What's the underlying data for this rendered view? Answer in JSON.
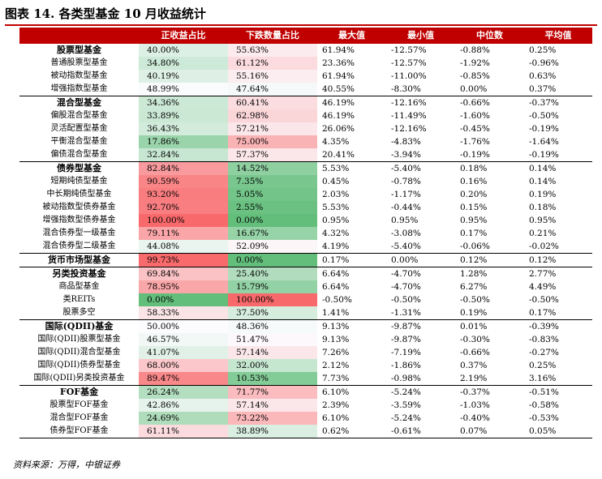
{
  "title": "图表 14. 各类型基金 10 月收益统计",
  "source": "资料来源：万得，中银证券",
  "columns": [
    "",
    "正收益占比",
    "下跌数量占比",
    "最大值",
    "最小值",
    "中位数",
    "平均值"
  ],
  "rows": [
    {
      "name": "股票型基金",
      "category": true,
      "pos": "40.00%",
      "pos_v": 40.0,
      "down": "55.63%",
      "down_v": 55.63,
      "max": "61.94%",
      "min": "-12.57%",
      "median": "-0.88%",
      "mean": "0.25%"
    },
    {
      "name": "普通股票型基金",
      "pos": "34.80%",
      "pos_v": 34.8,
      "down": "61.12%",
      "down_v": 61.12,
      "max": "23.36%",
      "min": "-12.57%",
      "median": "-1.92%",
      "mean": "-0.96%"
    },
    {
      "name": "被动指数型基金",
      "pos": "40.19%",
      "pos_v": 40.19,
      "down": "55.16%",
      "down_v": 55.16,
      "max": "61.94%",
      "min": "-11.00%",
      "median": "-0.85%",
      "mean": "0.63%"
    },
    {
      "name": "增强指数型基金",
      "pos": "48.99%",
      "pos_v": 48.99,
      "down": "47.64%",
      "down_v": 47.64,
      "max": "40.55%",
      "min": "-8.30%",
      "median": "0.00%",
      "mean": "0.37%"
    },
    {
      "name": "混合型基金",
      "category": true,
      "pos": "34.36%",
      "pos_v": 34.36,
      "down": "60.41%",
      "down_v": 60.41,
      "max": "46.19%",
      "min": "-12.16%",
      "median": "-0.66%",
      "mean": "-0.37%"
    },
    {
      "name": "偏股混合型基金",
      "pos": "33.89%",
      "pos_v": 33.89,
      "down": "62.98%",
      "down_v": 62.98,
      "max": "46.19%",
      "min": "-11.49%",
      "median": "-1.60%",
      "mean": "-0.50%"
    },
    {
      "name": "灵活配置型基金",
      "pos": "36.43%",
      "pos_v": 36.43,
      "down": "57.21%",
      "down_v": 57.21,
      "max": "26.06%",
      "min": "-12.16%",
      "median": "-0.45%",
      "mean": "-0.19%"
    },
    {
      "name": "平衡混合型基金",
      "pos": "17.86%",
      "pos_v": 17.86,
      "down": "75.00%",
      "down_v": 75.0,
      "max": "4.35%",
      "min": "-4.83%",
      "median": "-1.76%",
      "mean": "-1.64%"
    },
    {
      "name": "偏债混合型基金",
      "pos": "32.84%",
      "pos_v": 32.84,
      "down": "57.37%",
      "down_v": 57.37,
      "max": "20.41%",
      "min": "-3.94%",
      "median": "-0.19%",
      "mean": "-0.19%"
    },
    {
      "name": "债券型基金",
      "category": true,
      "pos": "82.84%",
      "pos_v": 82.84,
      "down": "14.52%",
      "down_v": 14.52,
      "max": "5.53%",
      "min": "-5.40%",
      "median": "0.18%",
      "mean": "0.14%"
    },
    {
      "name": "短期纯债型基金",
      "pos": "90.59%",
      "pos_v": 90.59,
      "down": "7.35%",
      "down_v": 7.35,
      "max": "0.45%",
      "min": "-0.78%",
      "median": "0.16%",
      "mean": "0.14%"
    },
    {
      "name": "中长期纯债型基金",
      "pos": "93.20%",
      "pos_v": 93.2,
      "down": "5.05%",
      "down_v": 5.05,
      "max": "2.03%",
      "min": "-1.17%",
      "median": "0.20%",
      "mean": "0.19%"
    },
    {
      "name": "被动指数型债券基金",
      "pos": "92.70%",
      "pos_v": 92.7,
      "down": "2.55%",
      "down_v": 2.55,
      "max": "5.53%",
      "min": "-0.44%",
      "median": "0.15%",
      "mean": "0.18%"
    },
    {
      "name": "增强指数型债券基金",
      "pos": "100.00%",
      "pos_v": 100.0,
      "down": "0.00%",
      "down_v": 0.0,
      "max": "0.95%",
      "min": "0.95%",
      "median": "0.95%",
      "mean": "0.95%"
    },
    {
      "name": "混合债券型一级基金",
      "pos": "79.11%",
      "pos_v": 79.11,
      "down": "16.67%",
      "down_v": 16.67,
      "max": "4.32%",
      "min": "-3.08%",
      "median": "0.17%",
      "mean": "0.21%"
    },
    {
      "name": "混合债券型二级基金",
      "pos": "44.08%",
      "pos_v": 44.08,
      "down": "52.09%",
      "down_v": 52.09,
      "max": "4.19%",
      "min": "-5.40%",
      "median": "-0.06%",
      "mean": "-0.02%"
    },
    {
      "name": "货币市场型基金",
      "category": true,
      "pos": "99.73%",
      "pos_v": 99.73,
      "down": "0.00%",
      "down_v": 0.0,
      "max": "0.17%",
      "min": "0.00%",
      "median": "0.12%",
      "mean": "0.12%"
    },
    {
      "name": "另类投资基金",
      "category": true,
      "pos": "69.84%",
      "pos_v": 69.84,
      "down": "25.40%",
      "down_v": 25.4,
      "max": "6.64%",
      "min": "-4.70%",
      "median": "1.28%",
      "mean": "2.77%"
    },
    {
      "name": "商品型基金",
      "pos": "78.95%",
      "pos_v": 78.95,
      "down": "15.79%",
      "down_v": 15.79,
      "max": "6.64%",
      "min": "-4.70%",
      "median": "6.27%",
      "mean": "4.49%"
    },
    {
      "name": "类REITs",
      "pos": "0.00%",
      "pos_v": 0.0,
      "down": "100.00%",
      "down_v": 100.0,
      "max": "-0.50%",
      "min": "-0.50%",
      "median": "-0.50%",
      "mean": "-0.50%"
    },
    {
      "name": "股票多空",
      "pos": "58.33%",
      "pos_v": 58.33,
      "down": "37.50%",
      "down_v": 37.5,
      "max": "1.41%",
      "min": "-1.31%",
      "median": "0.19%",
      "mean": "0.17%"
    },
    {
      "name": "国际(QDII)基金",
      "category": true,
      "pos": "50.00%",
      "pos_v": 50.0,
      "down": "48.36%",
      "down_v": 48.36,
      "max": "9.13%",
      "min": "-9.87%",
      "median": "0.01%",
      "mean": "-0.39%"
    },
    {
      "name": "国际(QDII)股票型基金",
      "pos": "46.57%",
      "pos_v": 46.57,
      "down": "51.47%",
      "down_v": 51.47,
      "max": "9.13%",
      "min": "-9.87%",
      "median": "-0.30%",
      "mean": "-0.83%"
    },
    {
      "name": "国际(QDII)混合型基金",
      "pos": "41.07%",
      "pos_v": 41.07,
      "down": "57.14%",
      "down_v": 57.14,
      "max": "7.26%",
      "min": "-7.19%",
      "median": "-0.66%",
      "mean": "-0.27%"
    },
    {
      "name": "国际(QDII)债券型基金",
      "pos": "68.00%",
      "pos_v": 68.0,
      "down": "32.00%",
      "down_v": 32.0,
      "max": "2.12%",
      "min": "-1.86%",
      "median": "0.37%",
      "mean": "0.25%"
    },
    {
      "name": "国际(QDII)另类投资基金",
      "pos": "89.47%",
      "pos_v": 89.47,
      "down": "10.53%",
      "down_v": 10.53,
      "max": "7.73%",
      "min": "-0.98%",
      "median": "2.19%",
      "mean": "3.16%"
    },
    {
      "name": "FOF基金",
      "category": true,
      "pos": "26.24%",
      "pos_v": 26.24,
      "down": "71.77%",
      "down_v": 71.77,
      "max": "6.10%",
      "min": "-5.24%",
      "median": "-0.37%",
      "mean": "-0.51%"
    },
    {
      "name": "股票型FOF基金",
      "pos": "42.86%",
      "pos_v": 42.86,
      "down": "57.14%",
      "down_v": 57.14,
      "max": "2.39%",
      "min": "-3.59%",
      "median": "-1.03%",
      "mean": "-0.58%"
    },
    {
      "name": "混合型FOF基金",
      "pos": "24.69%",
      "pos_v": 24.69,
      "down": "73.22%",
      "down_v": 73.22,
      "max": "6.10%",
      "min": "-5.24%",
      "median": "-0.40%",
      "mean": "-0.53%"
    },
    {
      "name": "债券型FOF基金",
      "pos": "61.11%",
      "pos_v": 61.11,
      "down": "38.89%",
      "down_v": 38.89,
      "max": "0.62%",
      "min": "-0.61%",
      "median": "0.07%",
      "mean": "0.05%"
    }
  ],
  "colors": {
    "header_bg": "#c00000",
    "rule": "#c00000",
    "high": "#f8696b",
    "mid": "#fcfcff",
    "low": "#63be7b"
  }
}
